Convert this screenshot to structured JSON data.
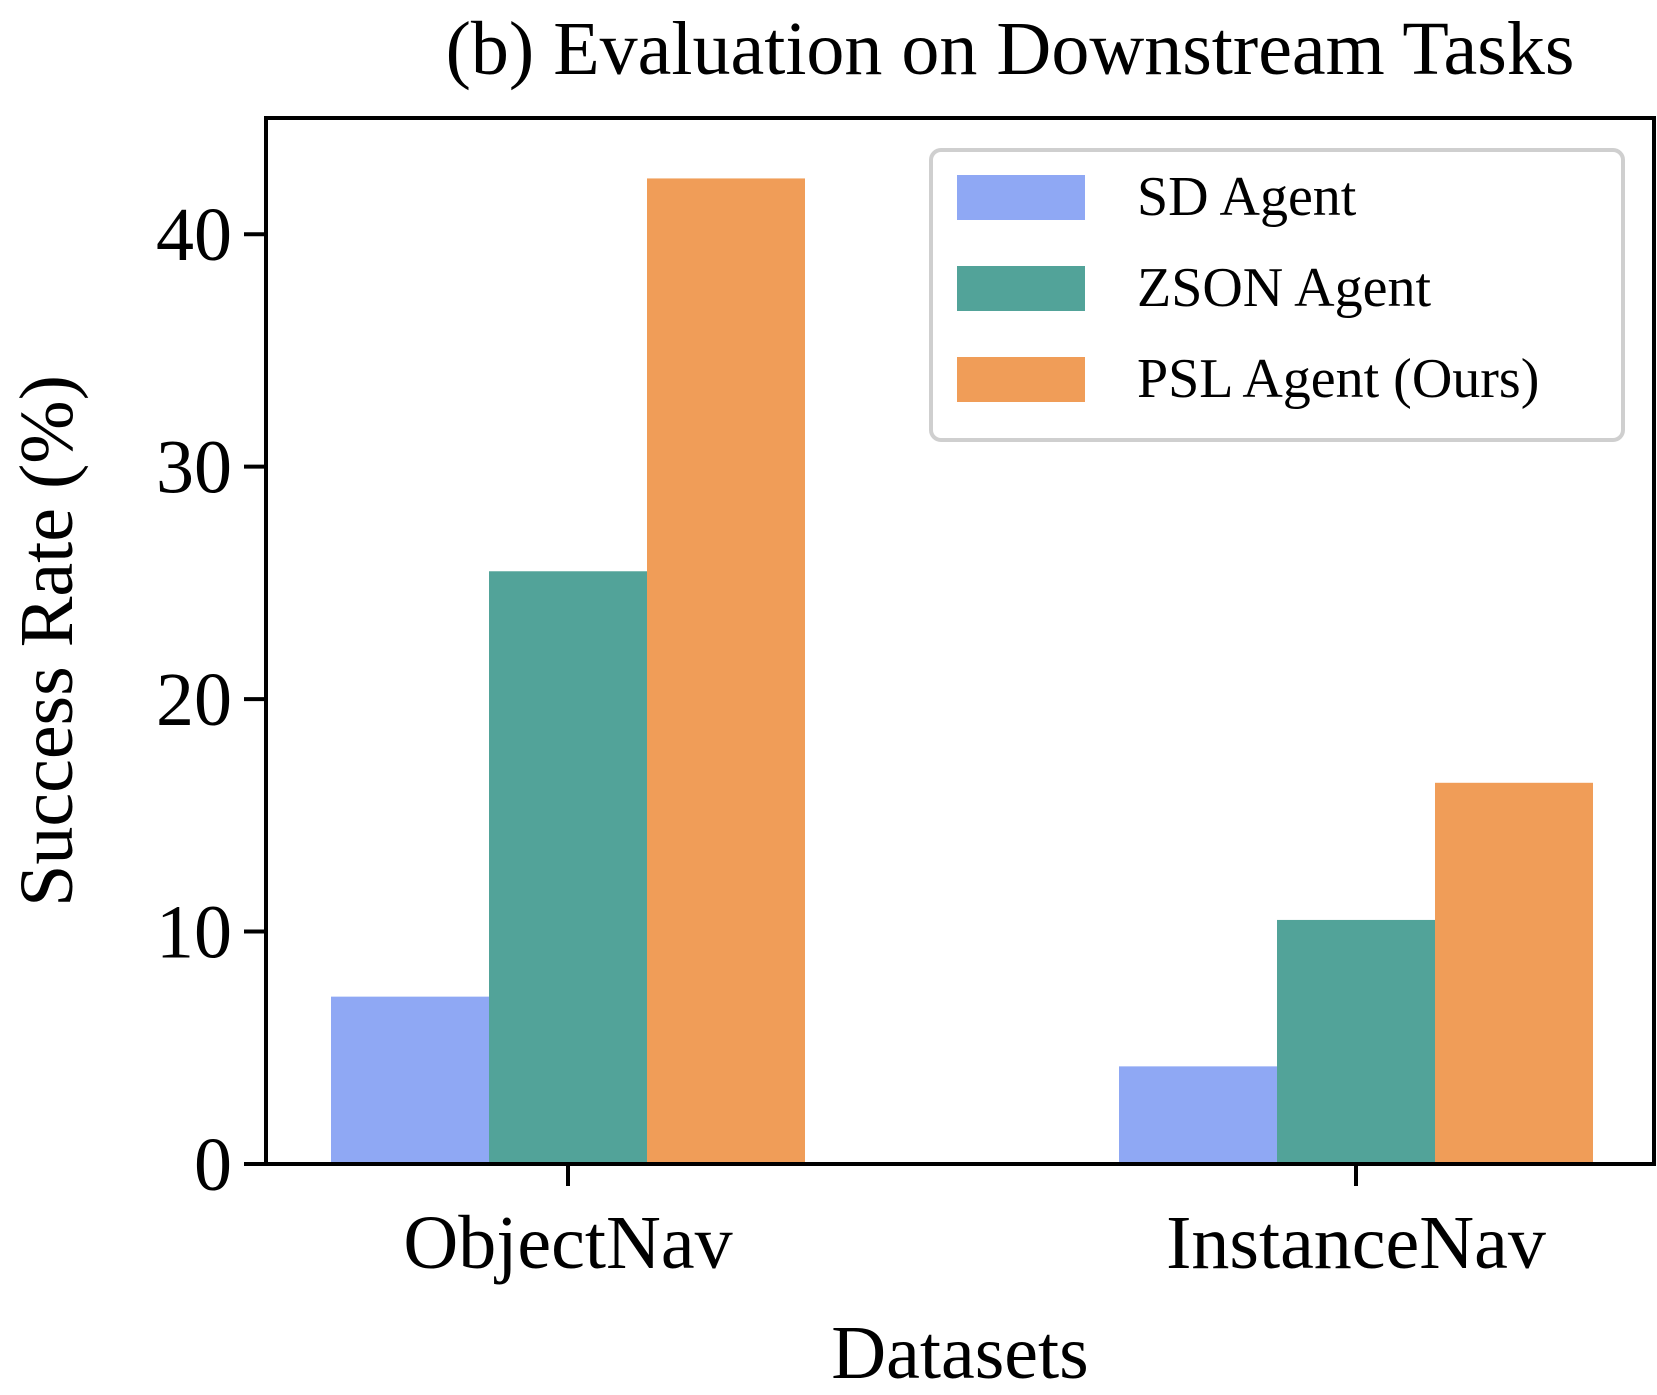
{
  "chart_data": {
    "type": "bar",
    "title": "(b) Evaluation on Downstream Tasks",
    "xlabel": "Datasets",
    "ylabel": "Success Rate (%)",
    "categories": [
      "ObjectNav",
      "InstanceNav"
    ],
    "series": [
      {
        "name": "SD Agent",
        "values": [
          7.2,
          4.2
        ],
        "color": "#8fa8f4"
      },
      {
        "name": "ZSON Agent",
        "values": [
          25.5,
          10.5
        ],
        "color": "#52a399"
      },
      {
        "name": "PSL Agent (Ours)",
        "values": [
          42.4,
          16.4
        ],
        "color": "#f09d58"
      }
    ],
    "ylim": [
      0,
      45
    ],
    "yticks": [
      0,
      10,
      20,
      30,
      40
    ],
    "grid": false,
    "legend_position": "top-right"
  }
}
